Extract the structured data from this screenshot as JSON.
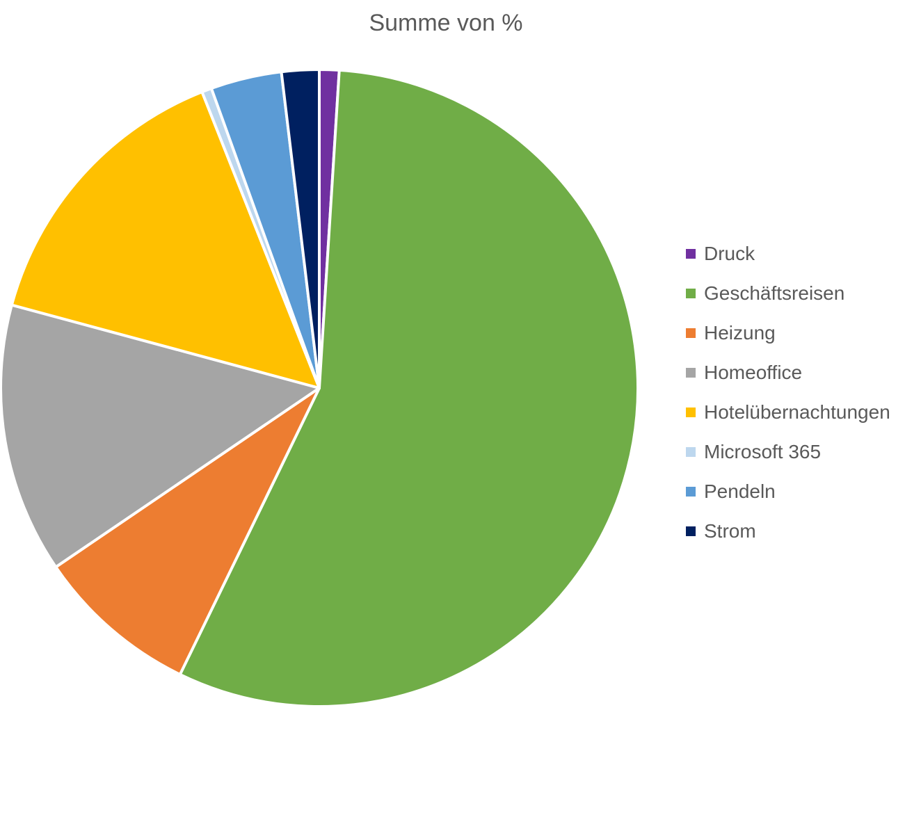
{
  "chart_data": {
    "type": "pie",
    "title": "Summe von %",
    "legend_position": "right",
    "start_angle_deg": 0,
    "direction": "clockwise",
    "slices": [
      {
        "label": "Druck",
        "value": 1.0,
        "color": "#7030A0"
      },
      {
        "label": "Geschäftsreisen",
        "value": 56.2,
        "color": "#70AD47"
      },
      {
        "label": "Heizung",
        "value": 8.3,
        "color": "#ED7D31"
      },
      {
        "label": "Homeoffice",
        "value": 13.7,
        "color": "#A5A5A5"
      },
      {
        "label": "Hotelübernachtungen",
        "value": 14.8,
        "color": "#FFC000"
      },
      {
        "label": "Microsoft 365",
        "value": 0.5,
        "color": "#BDD7EE"
      },
      {
        "label": "Pendeln",
        "value": 3.6,
        "color": "#5B9BD5"
      },
      {
        "label": "Strom",
        "value": 1.9,
        "color": "#002060"
      }
    ]
  }
}
